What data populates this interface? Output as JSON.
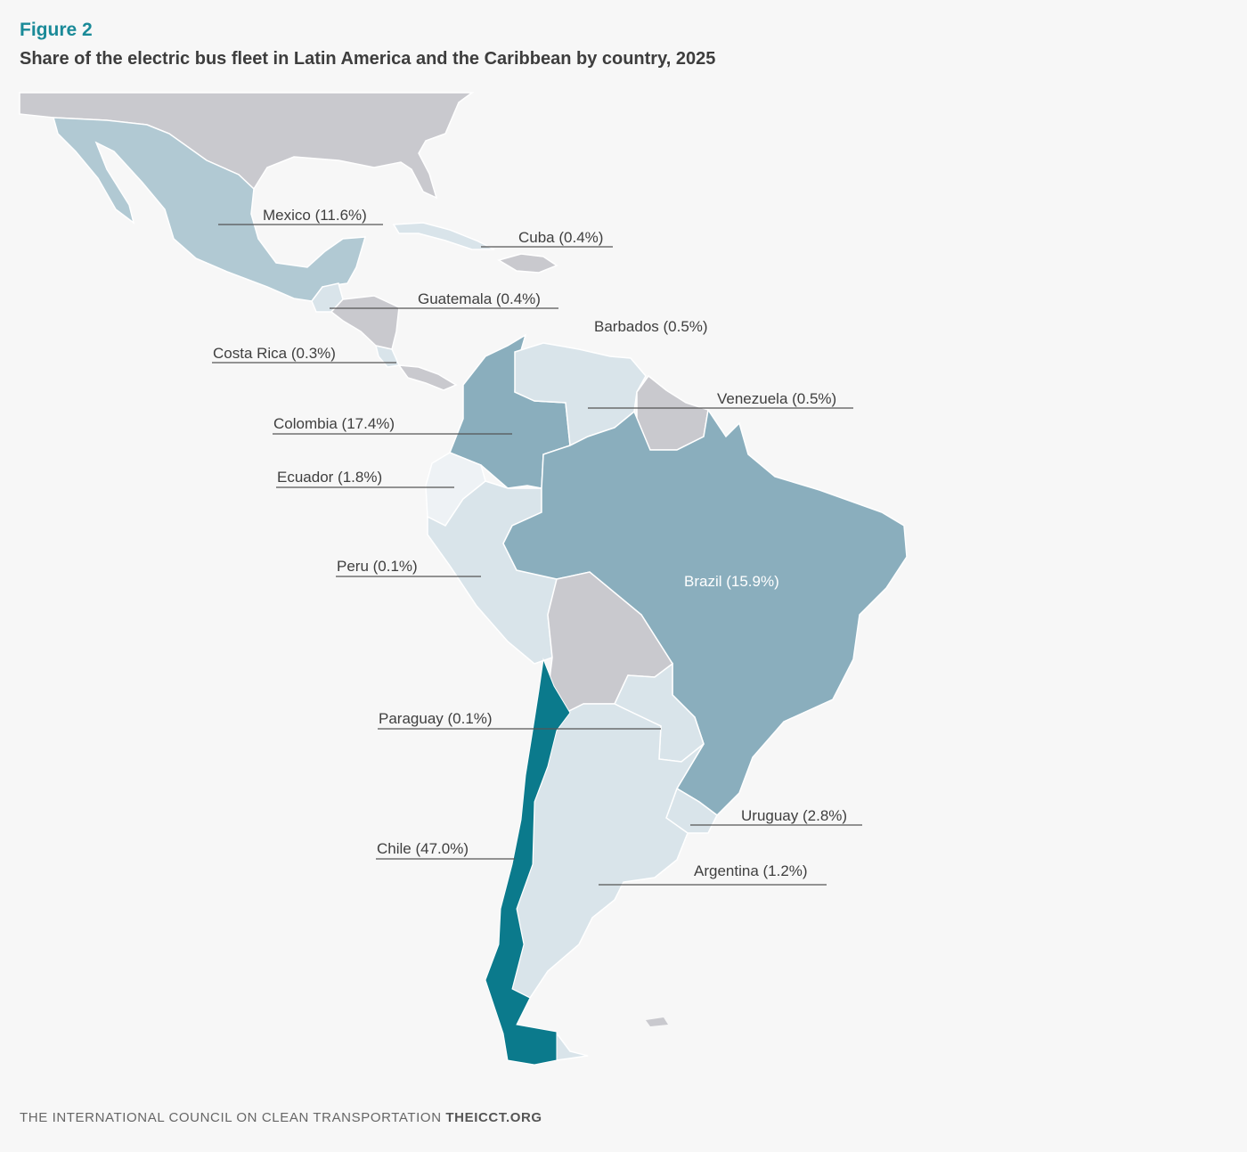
{
  "figure": {
    "label": "Figure 2",
    "title": "Share of the electric bus fleet in Latin America and the Caribbean by country, 2025"
  },
  "colors": {
    "no_data": "#c9c9ce",
    "low": "#d9e4ea",
    "medium": "#b1c9d3",
    "high": "#8aaebd",
    "highest": "#0b7a8c"
  },
  "countries": [
    {
      "name": "Mexico",
      "share": "11.6%",
      "label": "Mexico (11.6%)"
    },
    {
      "name": "Cuba",
      "share": "0.4%",
      "label": "Cuba (0.4%)"
    },
    {
      "name": "Guatemala",
      "share": "0.4%",
      "label": "Guatemala (0.4%)"
    },
    {
      "name": "Barbados",
      "share": "0.5%",
      "label": "Barbados (0.5%)"
    },
    {
      "name": "Costa Rica",
      "share": "0.3%",
      "label": "Costa Rica (0.3%)"
    },
    {
      "name": "Venezuela",
      "share": "0.5%",
      "label": "Venezuela (0.5%)"
    },
    {
      "name": "Colombia",
      "share": "17.4%",
      "label": "Colombia (17.4%)"
    },
    {
      "name": "Ecuador",
      "share": "1.8%",
      "label": "Ecuador (1.8%)"
    },
    {
      "name": "Peru",
      "share": "0.1%",
      "label": "Peru (0.1%)"
    },
    {
      "name": "Brazil",
      "share": "15.9%",
      "label": "Brazil (15.9%)"
    },
    {
      "name": "Paraguay",
      "share": "0.1%",
      "label": "Paraguay (0.1%)"
    },
    {
      "name": "Uruguay",
      "share": "2.8%",
      "label": "Uruguay (2.8%)"
    },
    {
      "name": "Chile",
      "share": "47.0%",
      "label": "Chile (47.0%)"
    },
    {
      "name": "Argentina",
      "share": "1.2%",
      "label": "Argentina (1.2%)"
    }
  ],
  "footer": {
    "org": "THE INTERNATIONAL COUNCIL ON CLEAN TRANSPORTATION",
    "site": "THEICCT.ORG"
  }
}
